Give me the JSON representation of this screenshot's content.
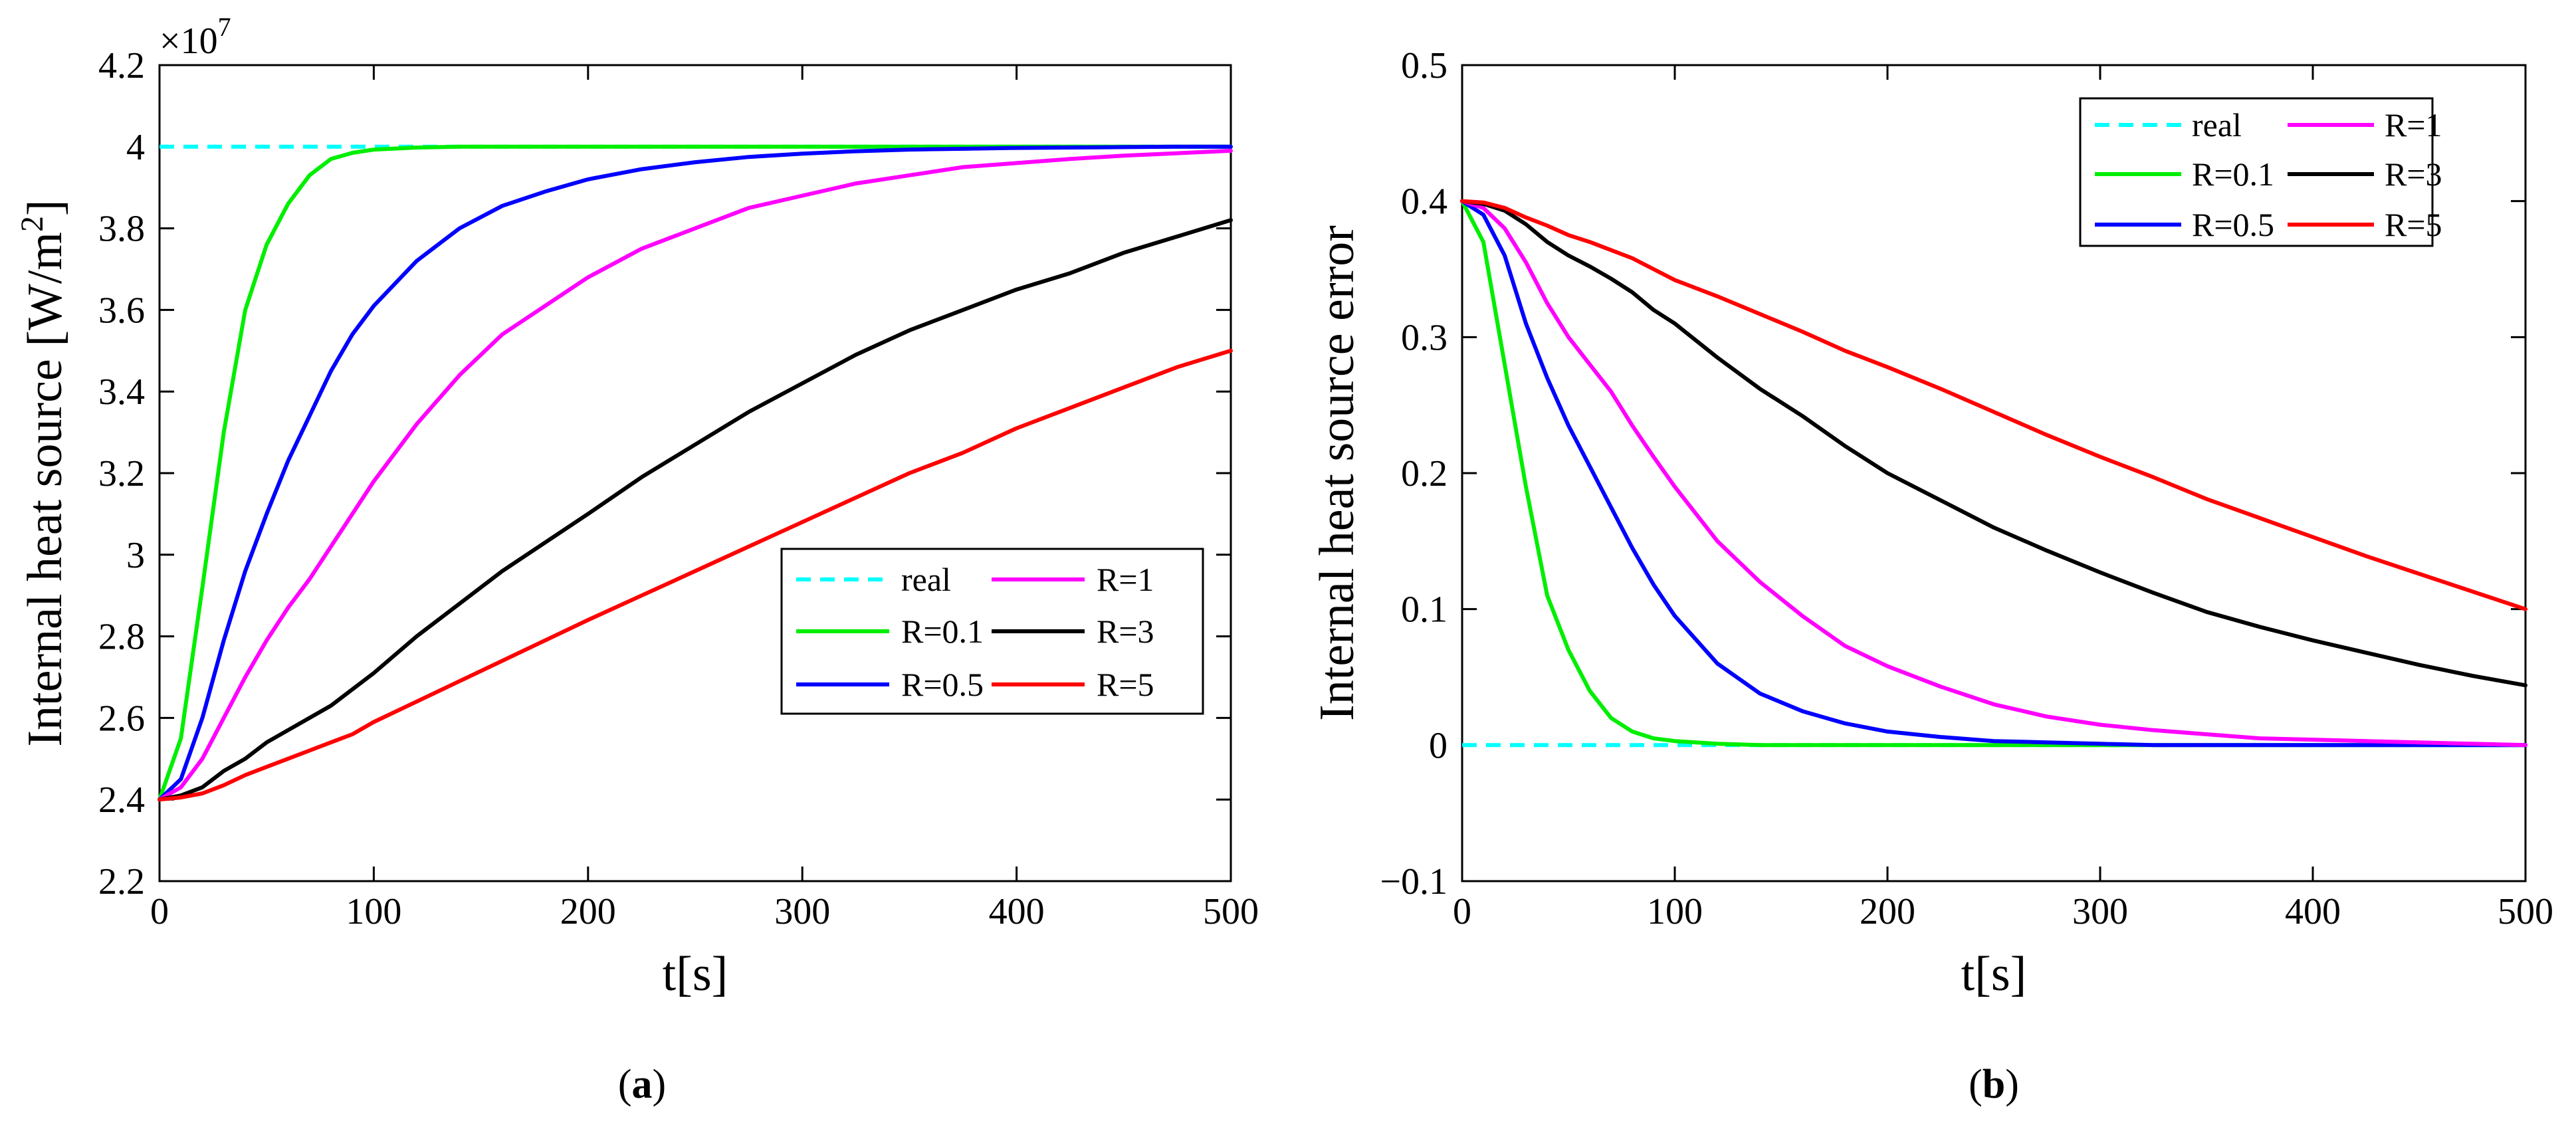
{
  "figure": {
    "panel_labels": [
      {
        "open": "(",
        "letter": "a",
        "close": ")"
      },
      {
        "open": "(",
        "letter": "b",
        "close": ")"
      }
    ]
  },
  "chart_data": [
    {
      "type": "line",
      "panel": "a",
      "xlabel": "t[s]",
      "ylabel": "Internal heat source [W/m",
      "ylabel_sup": "2",
      "ylabel_tail": "]",
      "exponent_label": {
        "base": "×10",
        "power": "7"
      },
      "xlim": [
        0,
        500
      ],
      "ylim": [
        2.2,
        4.2
      ],
      "xticks": [
        0,
        100,
        200,
        300,
        400,
        500
      ],
      "xtick_labels": [
        "0",
        "100",
        "200",
        "300",
        "400",
        "500"
      ],
      "yticks": [
        2.2,
        2.4,
        2.6,
        2.8,
        3.0,
        3.2,
        3.4,
        3.6,
        3.8,
        4.0,
        4.2
      ],
      "ytick_labels": [
        "2.2",
        "2.4",
        "2.6",
        "2.8",
        "3",
        "3.2",
        "3.4",
        "3.6",
        "3.8",
        "4",
        "4.2"
      ],
      "grid": false,
      "legend_position": "center-right",
      "x": [
        0,
        10,
        20,
        30,
        40,
        50,
        60,
        70,
        80,
        90,
        100,
        120,
        140,
        160,
        180,
        200,
        225,
        250,
        275,
        300,
        325,
        350,
        375,
        400,
        425,
        450,
        475,
        500
      ],
      "series": [
        {
          "name": "real",
          "color": "#00ffff",
          "dashed": true,
          "values": [
            4.0,
            4.0,
            4.0,
            4.0,
            4.0,
            4.0,
            4.0,
            4.0,
            4.0,
            4.0,
            4.0,
            4.0,
            4.0,
            4.0,
            4.0,
            4.0,
            4.0,
            4.0,
            4.0,
            4.0,
            4.0,
            4.0,
            4.0,
            4.0,
            4.0,
            4.0,
            4.0,
            4.0
          ]
        },
        {
          "name": "R=0.1",
          "color": "#00ee00",
          "dashed": false,
          "values": [
            2.4,
            2.55,
            2.92,
            3.3,
            3.6,
            3.76,
            3.86,
            3.93,
            3.97,
            3.985,
            3.993,
            3.998,
            4.0,
            4.0,
            4.0,
            4.0,
            4.0,
            4.0,
            4.0,
            4.0,
            4.0,
            4.0,
            4.0,
            4.0,
            4.0,
            4.0,
            4.0,
            4.0
          ]
        },
        {
          "name": "R=0.5",
          "color": "#0000ff",
          "dashed": false,
          "values": [
            2.4,
            2.45,
            2.6,
            2.79,
            2.96,
            3.1,
            3.23,
            3.34,
            3.45,
            3.54,
            3.61,
            3.72,
            3.8,
            3.855,
            3.89,
            3.92,
            3.945,
            3.962,
            3.975,
            3.983,
            3.989,
            3.993,
            3.995,
            3.997,
            3.998,
            3.999,
            4.0,
            4.0
          ]
        },
        {
          "name": "R=1",
          "color": "#ff00ff",
          "dashed": false,
          "values": [
            2.4,
            2.43,
            2.5,
            2.6,
            2.7,
            2.79,
            2.87,
            2.94,
            3.02,
            3.1,
            3.18,
            3.32,
            3.44,
            3.54,
            3.61,
            3.68,
            3.75,
            3.8,
            3.85,
            3.88,
            3.91,
            3.93,
            3.95,
            3.96,
            3.97,
            3.978,
            3.984,
            3.99
          ]
        },
        {
          "name": "R=3",
          "color": "#000000",
          "dashed": false,
          "values": [
            2.4,
            2.41,
            2.43,
            2.47,
            2.5,
            2.54,
            2.57,
            2.6,
            2.63,
            2.67,
            2.71,
            2.8,
            2.88,
            2.96,
            3.03,
            3.1,
            3.19,
            3.27,
            3.35,
            3.42,
            3.49,
            3.55,
            3.6,
            3.65,
            3.69,
            3.74,
            3.78,
            3.82
          ]
        },
        {
          "name": "R=5",
          "color": "#ff0000",
          "dashed": false,
          "values": [
            2.4,
            2.405,
            2.415,
            2.435,
            2.46,
            2.48,
            2.5,
            2.52,
            2.54,
            2.56,
            2.59,
            2.64,
            2.69,
            2.74,
            2.79,
            2.84,
            2.9,
            2.96,
            3.02,
            3.08,
            3.14,
            3.2,
            3.25,
            3.31,
            3.36,
            3.41,
            3.46,
            3.5
          ]
        }
      ]
    },
    {
      "type": "line",
      "panel": "b",
      "xlabel": "t[s]",
      "ylabel": "Internal heat source error",
      "xlim": [
        0,
        500
      ],
      "ylim": [
        -0.1,
        0.5
      ],
      "xticks": [
        0,
        100,
        200,
        300,
        400,
        500
      ],
      "xtick_labels": [
        "0",
        "100",
        "200",
        "300",
        "400",
        "500"
      ],
      "yticks": [
        -0.1,
        0.0,
        0.1,
        0.2,
        0.3,
        0.4,
        0.5
      ],
      "ytick_labels": [
        "−0.1",
        "0",
        "0.1",
        "0.2",
        "0.3",
        "0.4",
        "0.5"
      ],
      "grid": false,
      "legend_position": "top-right",
      "x": [
        0,
        10,
        20,
        30,
        40,
        50,
        60,
        70,
        80,
        90,
        100,
        120,
        140,
        160,
        180,
        200,
        225,
        250,
        275,
        300,
        325,
        350,
        375,
        400,
        425,
        450,
        475,
        500
      ],
      "series": [
        {
          "name": "real",
          "color": "#00ffff",
          "dashed": true,
          "values": [
            0,
            0,
            0,
            0,
            0,
            0,
            0,
            0,
            0,
            0,
            0,
            0,
            0,
            0,
            0,
            0,
            0,
            0,
            0,
            0,
            0,
            0,
            0,
            0,
            0,
            0,
            0,
            0
          ]
        },
        {
          "name": "R=0.1",
          "color": "#00ee00",
          "dashed": false,
          "values": [
            0.4,
            0.37,
            0.28,
            0.19,
            0.11,
            0.07,
            0.04,
            0.02,
            0.01,
            0.005,
            0.003,
            0.001,
            0.0,
            0.0,
            0.0,
            0.0,
            0.0,
            0.0,
            0.0,
            0.0,
            0.0,
            0.0,
            0.0,
            0.0,
            0.0,
            0.0,
            0.0,
            0.0
          ]
        },
        {
          "name": "R=0.5",
          "color": "#0000ff",
          "dashed": false,
          "values": [
            0.4,
            0.39,
            0.36,
            0.31,
            0.27,
            0.235,
            0.205,
            0.175,
            0.145,
            0.118,
            0.095,
            0.06,
            0.038,
            0.025,
            0.016,
            0.01,
            0.006,
            0.003,
            0.002,
            0.001,
            0.0,
            0.0,
            0.0,
            0.0,
            0.0,
            0.0,
            0.0,
            0.0
          ]
        },
        {
          "name": "R=1",
          "color": "#ff00ff",
          "dashed": false,
          "values": [
            0.4,
            0.395,
            0.38,
            0.355,
            0.325,
            0.3,
            0.28,
            0.26,
            0.235,
            0.212,
            0.19,
            0.15,
            0.12,
            0.095,
            0.073,
            0.058,
            0.043,
            0.03,
            0.021,
            0.015,
            0.011,
            0.008,
            0.005,
            0.004,
            0.003,
            0.002,
            0.001,
            0.0
          ]
        },
        {
          "name": "R=3",
          "color": "#000000",
          "dashed": false,
          "values": [
            0.4,
            0.398,
            0.393,
            0.383,
            0.37,
            0.36,
            0.352,
            0.343,
            0.333,
            0.32,
            0.31,
            0.285,
            0.262,
            0.242,
            0.22,
            0.2,
            0.18,
            0.16,
            0.143,
            0.127,
            0.112,
            0.098,
            0.087,
            0.077,
            0.068,
            0.059,
            0.051,
            0.044
          ]
        },
        {
          "name": "R=5",
          "color": "#ff0000",
          "dashed": false,
          "values": [
            0.4,
            0.399,
            0.395,
            0.388,
            0.382,
            0.375,
            0.37,
            0.364,
            0.358,
            0.35,
            0.342,
            0.33,
            0.317,
            0.304,
            0.29,
            0.278,
            0.262,
            0.245,
            0.228,
            0.212,
            0.197,
            0.181,
            0.167,
            0.153,
            0.139,
            0.126,
            0.113,
            0.1
          ]
        }
      ]
    }
  ]
}
